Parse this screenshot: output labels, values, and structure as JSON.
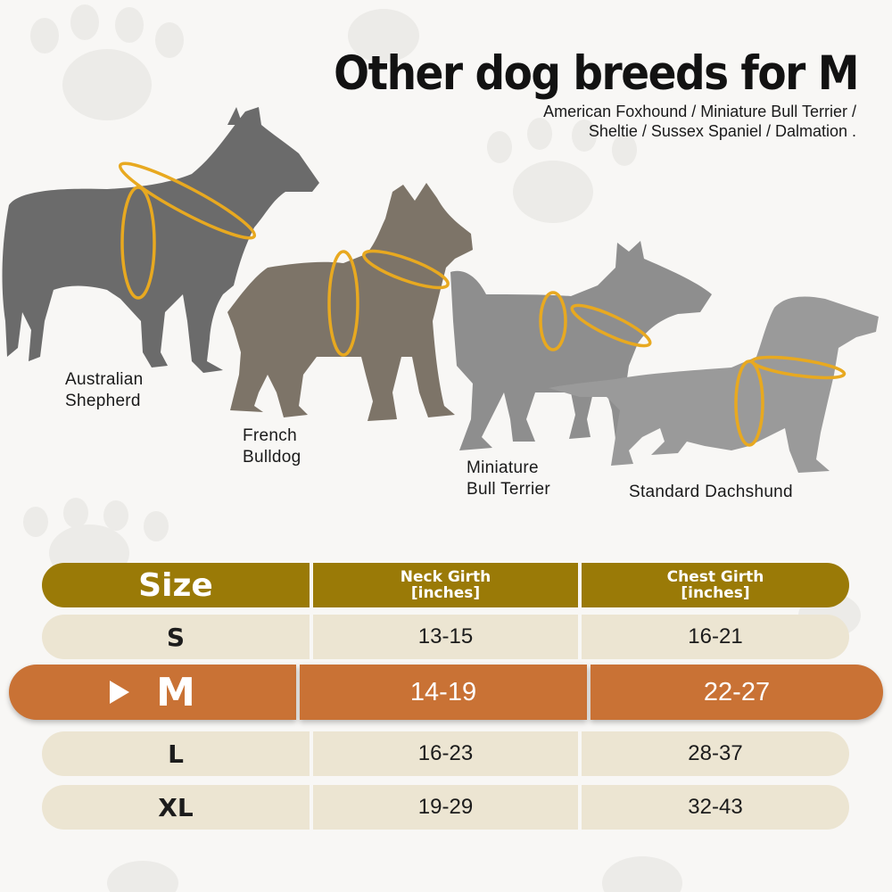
{
  "header": {
    "title": "Other dog breeds for M",
    "subtitle_line1": "American Foxhound / Miniature Bull Terrier /",
    "subtitle_line2": "Sheltie / Sussex Spaniel / Dalmation ."
  },
  "dogs": [
    {
      "label_line1": "Australian",
      "label_line2": "Shepherd",
      "icon": "shepherd-silhouette-icon",
      "color": "#6b6b6b"
    },
    {
      "label_line1": "French",
      "label_line2": "Bulldog",
      "icon": "bulldog-silhouette-icon",
      "color": "#7d7468"
    },
    {
      "label_line1": "Miniature",
      "label_line2": "Bull Terrier",
      "icon": "bull-terrier-silhouette-icon",
      "color": "#8e8e8e"
    },
    {
      "label_line1": "Standard Dachshund",
      "label_line2": "",
      "icon": "dachshund-silhouette-icon",
      "color": "#9a9a9a"
    }
  ],
  "harness_color": "#e8a920",
  "table": {
    "header": {
      "size": "Size",
      "neck_line1": "Neck Girth",
      "neck_line2": "[inches]",
      "chest_line1": "Chest Girth",
      "chest_line2": "[inches]"
    },
    "rows": [
      {
        "size": "S",
        "neck": "13-15",
        "chest": "16-21"
      },
      {
        "size": "M",
        "neck": "14-19",
        "chest": "22-27"
      },
      {
        "size": "L",
        "neck": "16-23",
        "chest": "28-37"
      },
      {
        "size": "XL",
        "neck": "19-29",
        "chest": "32-43"
      }
    ],
    "highlighted_size": "M",
    "colors": {
      "header": "#9a7a07",
      "row": "#ece5d2",
      "highlight": "#c97235"
    }
  }
}
